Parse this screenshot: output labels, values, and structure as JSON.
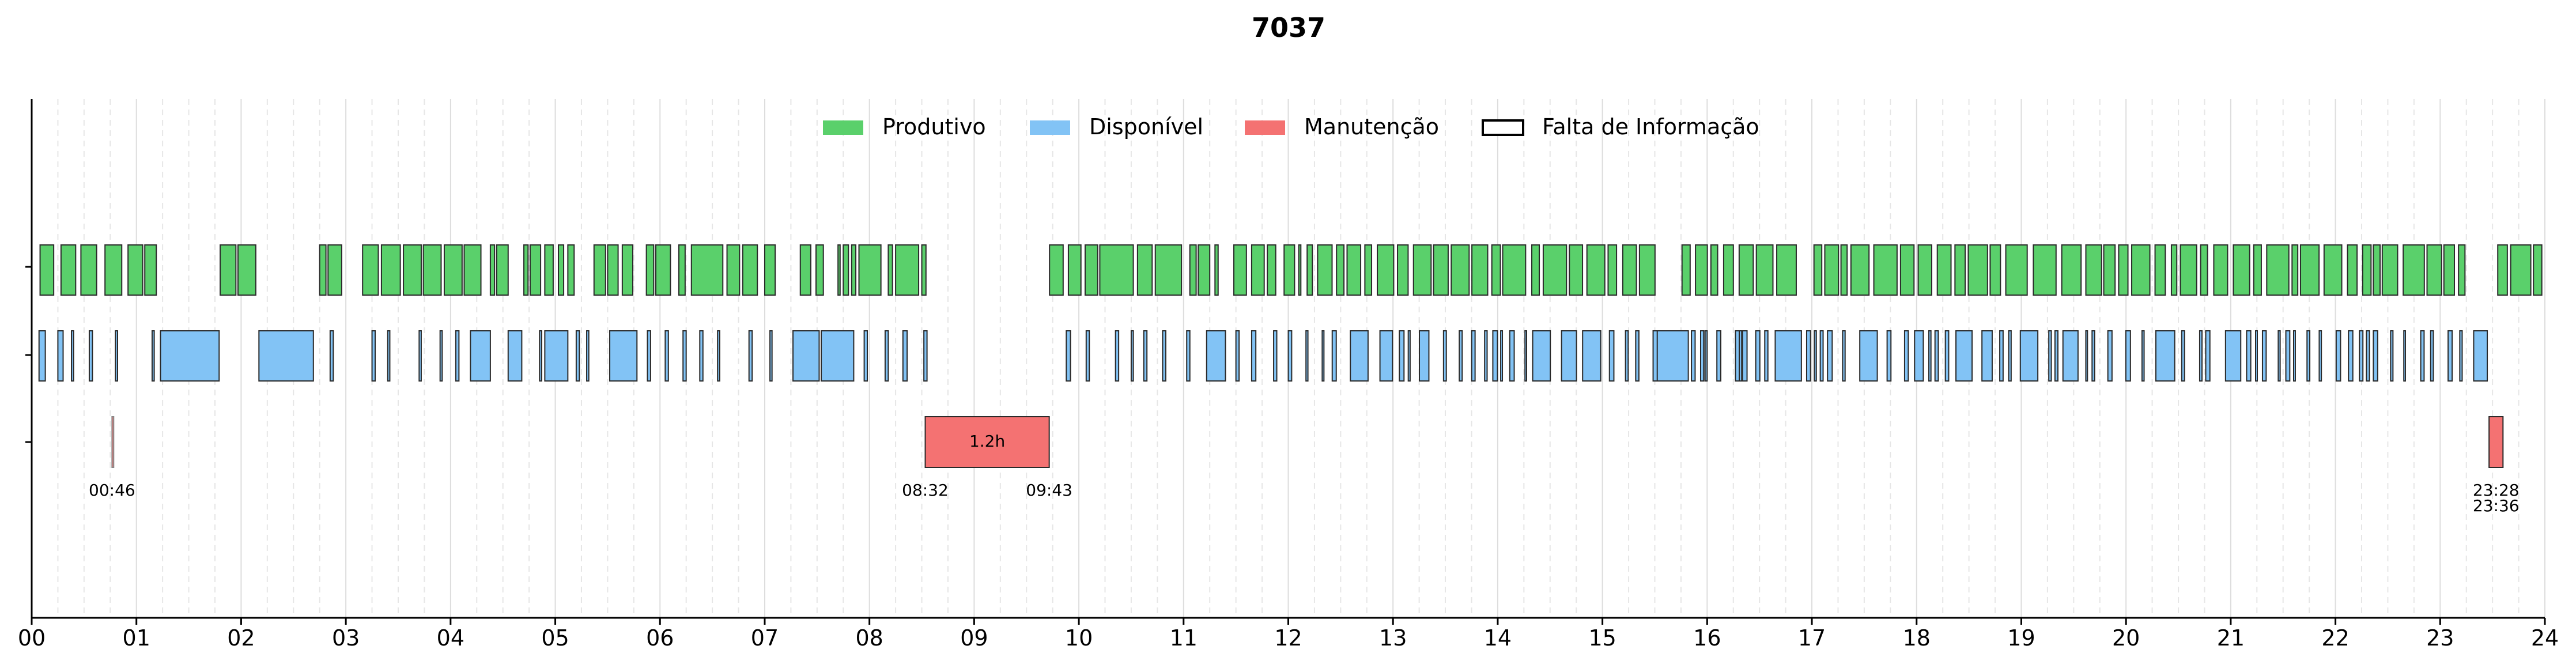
{
  "chart_data": {
    "type": "timeline",
    "title": "7037",
    "x_ticks": [
      "00",
      "01",
      "02",
      "03",
      "04",
      "05",
      "06",
      "07",
      "08",
      "09",
      "10",
      "11",
      "12",
      "13",
      "14",
      "15",
      "16",
      "17",
      "18",
      "19",
      "20",
      "21",
      "22",
      "23",
      "24"
    ],
    "xlim": [
      0,
      24
    ],
    "grid": "vertical, major at each hour, minor dashed at 15 min",
    "legend": {
      "placement": "top-center",
      "entries": [
        {
          "label": "Produtivo",
          "color": "#5ad06b"
        },
        {
          "label": "Disponível",
          "color": "#82c3f5"
        },
        {
          "label": "Manutenção",
          "color": "#f47272"
        },
        {
          "label": "Falta de Informação",
          "color": "#ffffff"
        }
      ]
    },
    "colors": {
      "Produtivo": "#5ad06b",
      "Disponível": "#82c3f5",
      "Manutenção": "#f47272",
      "edge": "#2a2a2a"
    },
    "rows": [
      "Produtivo",
      "Disponível",
      "Manutenção"
    ],
    "productive": [
      [
        0.08,
        0.21
      ],
      [
        0.28,
        0.42
      ],
      [
        0.47,
        0.62
      ],
      [
        0.7,
        0.86
      ],
      [
        0.92,
        1.06
      ],
      [
        1.08,
        1.19
      ],
      [
        1.8,
        1.95
      ],
      [
        1.97,
        2.14
      ],
      [
        2.75,
        2.81
      ],
      [
        2.83,
        2.96
      ],
      [
        3.16,
        3.31
      ],
      [
        3.34,
        3.52
      ],
      [
        3.55,
        3.72
      ],
      [
        3.74,
        3.91
      ],
      [
        3.94,
        4.11
      ],
      [
        4.13,
        4.29
      ],
      [
        4.38,
        4.42
      ],
      [
        4.44,
        4.55
      ],
      [
        4.7,
        4.74
      ],
      [
        4.76,
        4.86
      ],
      [
        4.9,
        4.98
      ],
      [
        5.03,
        5.08
      ],
      [
        5.12,
        5.18
      ],
      [
        5.37,
        5.48
      ],
      [
        5.5,
        5.6
      ],
      [
        5.64,
        5.74
      ],
      [
        5.87,
        5.94
      ],
      [
        5.96,
        6.1
      ],
      [
        6.18,
        6.24
      ],
      [
        6.3,
        6.6
      ],
      [
        6.64,
        6.76
      ],
      [
        6.79,
        6.93
      ],
      [
        7.0,
        7.1
      ],
      [
        7.34,
        7.44
      ],
      [
        7.49,
        7.56
      ],
      [
        7.7,
        7.72
      ],
      [
        7.75,
        7.8
      ],
      [
        7.83,
        7.87
      ],
      [
        7.9,
        8.11
      ],
      [
        8.18,
        8.22
      ],
      [
        8.25,
        8.47
      ],
      [
        8.5,
        8.54
      ],
      [
        9.72,
        9.85
      ],
      [
        9.9,
        10.02
      ],
      [
        10.06,
        10.18
      ],
      [
        10.2,
        10.52
      ],
      [
        10.56,
        10.7
      ],
      [
        10.73,
        10.98
      ],
      [
        11.06,
        11.12
      ],
      [
        11.14,
        11.25
      ],
      [
        11.3,
        11.33
      ],
      [
        11.48,
        11.6
      ],
      [
        11.65,
        11.77
      ],
      [
        11.8,
        11.88
      ],
      [
        11.96,
        12.06
      ],
      [
        12.1,
        12.12
      ],
      [
        12.18,
        12.23
      ]
    ],
    "available": [
      [
        0.07,
        0.13
      ],
      [
        0.25,
        0.3
      ],
      [
        0.38,
        0.4
      ],
      [
        0.55,
        0.58
      ],
      [
        0.8,
        0.82
      ],
      [
        1.15,
        1.17
      ],
      [
        1.23,
        1.79
      ],
      [
        2.17,
        2.69
      ],
      [
        2.85,
        2.88
      ],
      [
        3.25,
        3.28
      ],
      [
        3.4,
        3.42
      ],
      [
        3.7,
        3.72
      ],
      [
        3.9,
        3.92
      ],
      [
        4.05,
        4.08
      ],
      [
        4.19,
        4.38
      ],
      [
        4.55,
        4.68
      ],
      [
        4.85,
        4.87
      ],
      [
        4.9,
        5.12
      ],
      [
        5.2,
        5.23
      ],
      [
        5.3,
        5.32
      ],
      [
        5.52,
        5.78
      ],
      [
        5.88,
        5.91
      ],
      [
        6.05,
        6.08
      ],
      [
        6.22,
        6.25
      ],
      [
        6.38,
        6.41
      ],
      [
        6.55,
        6.57
      ],
      [
        6.85,
        6.88
      ],
      [
        7.05,
        7.07
      ],
      [
        7.27,
        7.52
      ],
      [
        7.54,
        7.85
      ],
      [
        7.95,
        7.98
      ],
      [
        8.15,
        8.18
      ],
      [
        8.32,
        8.36
      ],
      [
        8.52,
        8.55
      ],
      [
        9.88,
        9.92
      ],
      [
        10.07,
        10.1
      ],
      [
        10.35,
        10.38
      ],
      [
        10.5,
        10.52
      ],
      [
        10.62,
        10.65
      ],
      [
        10.8,
        10.83
      ],
      [
        11.03,
        11.06
      ],
      [
        11.22,
        11.4
      ],
      [
        11.5,
        11.53
      ],
      [
        11.65,
        11.69
      ],
      [
        11.86,
        11.89
      ],
      [
        15.5,
        15.82
      ],
      [
        15.98,
        16.0
      ],
      [
        16.1,
        16.13
      ],
      [
        16.3,
        16.33
      ],
      [
        16.55,
        16.58
      ],
      [
        16.65,
        16.9
      ]
    ],
    "maintenance": [
      {
        "start": 0.767,
        "end": 0.783,
        "start_label": "00:46"
      },
      {
        "start": 8.533,
        "end": 9.717,
        "start_label": "08:32",
        "end_label": "09:43",
        "duration_label": "1.2h"
      },
      {
        "start": 23.467,
        "end": 23.6,
        "start_label": "23:28",
        "end_label": "23:36"
      }
    ]
  }
}
